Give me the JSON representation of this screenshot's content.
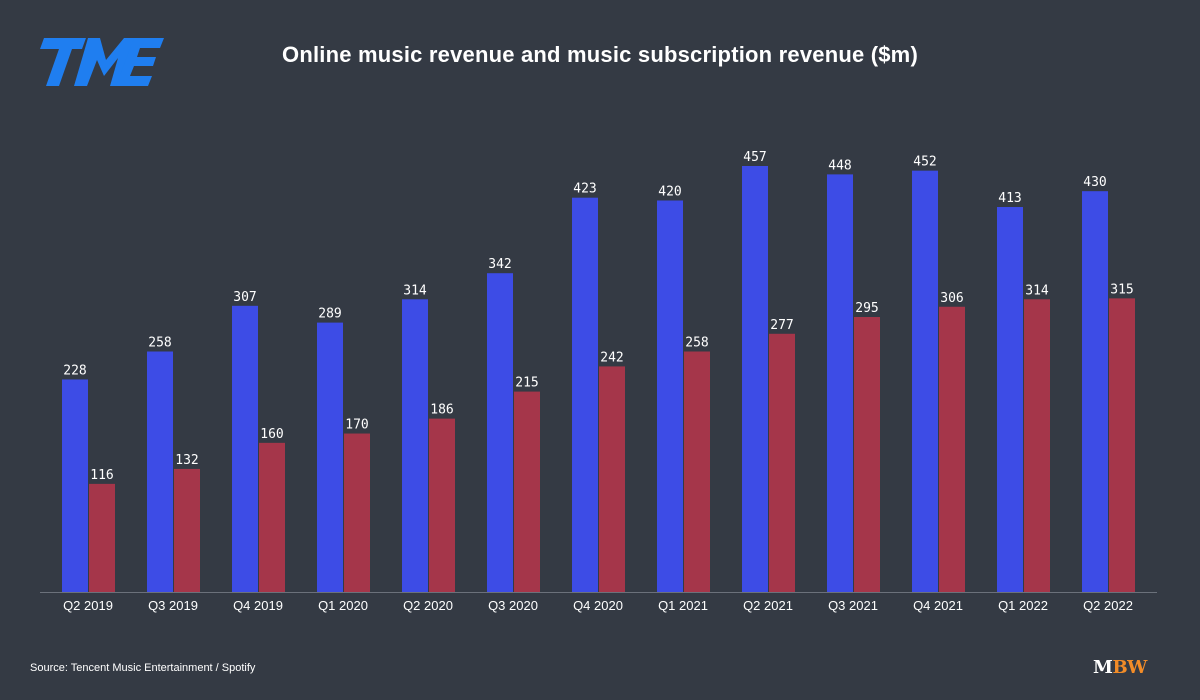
{
  "title": "Online music revenue and music subscription revenue ($m)",
  "source": "Source: Tencent Music Entertainment / Spotify",
  "brand": {
    "logo_text": "TME",
    "mbw_m": "M",
    "mbw_bw": "BW"
  },
  "colors": {
    "background": "#343a44",
    "online_music": "#3d4ce6",
    "subscription": "#a5364a",
    "accent": "#f28c28",
    "logo": "#1f7ef0"
  },
  "chart_data": {
    "type": "bar",
    "categories": [
      "Q2 2019",
      "Q3 2019",
      "Q4 2019",
      "Q1 2020",
      "Q2 2020",
      "Q3 2020",
      "Q4 2020",
      "Q1 2021",
      "Q2 2021",
      "Q3 2021",
      "Q4 2021",
      "Q1 2022",
      "Q2 2022"
    ],
    "series": [
      {
        "values": [
          228,
          258,
          307,
          289,
          314,
          342,
          423,
          420,
          457,
          448,
          452,
          413,
          430
        ],
        "color": "#3d4ce6"
      },
      {
        "values": [
          116,
          132,
          160,
          170,
          186,
          215,
          242,
          258,
          277,
          295,
          306,
          314,
          315
        ],
        "color": "#a5364a"
      }
    ],
    "ylim": [
      0,
      457
    ],
    "grid": false,
    "legend": "none"
  }
}
